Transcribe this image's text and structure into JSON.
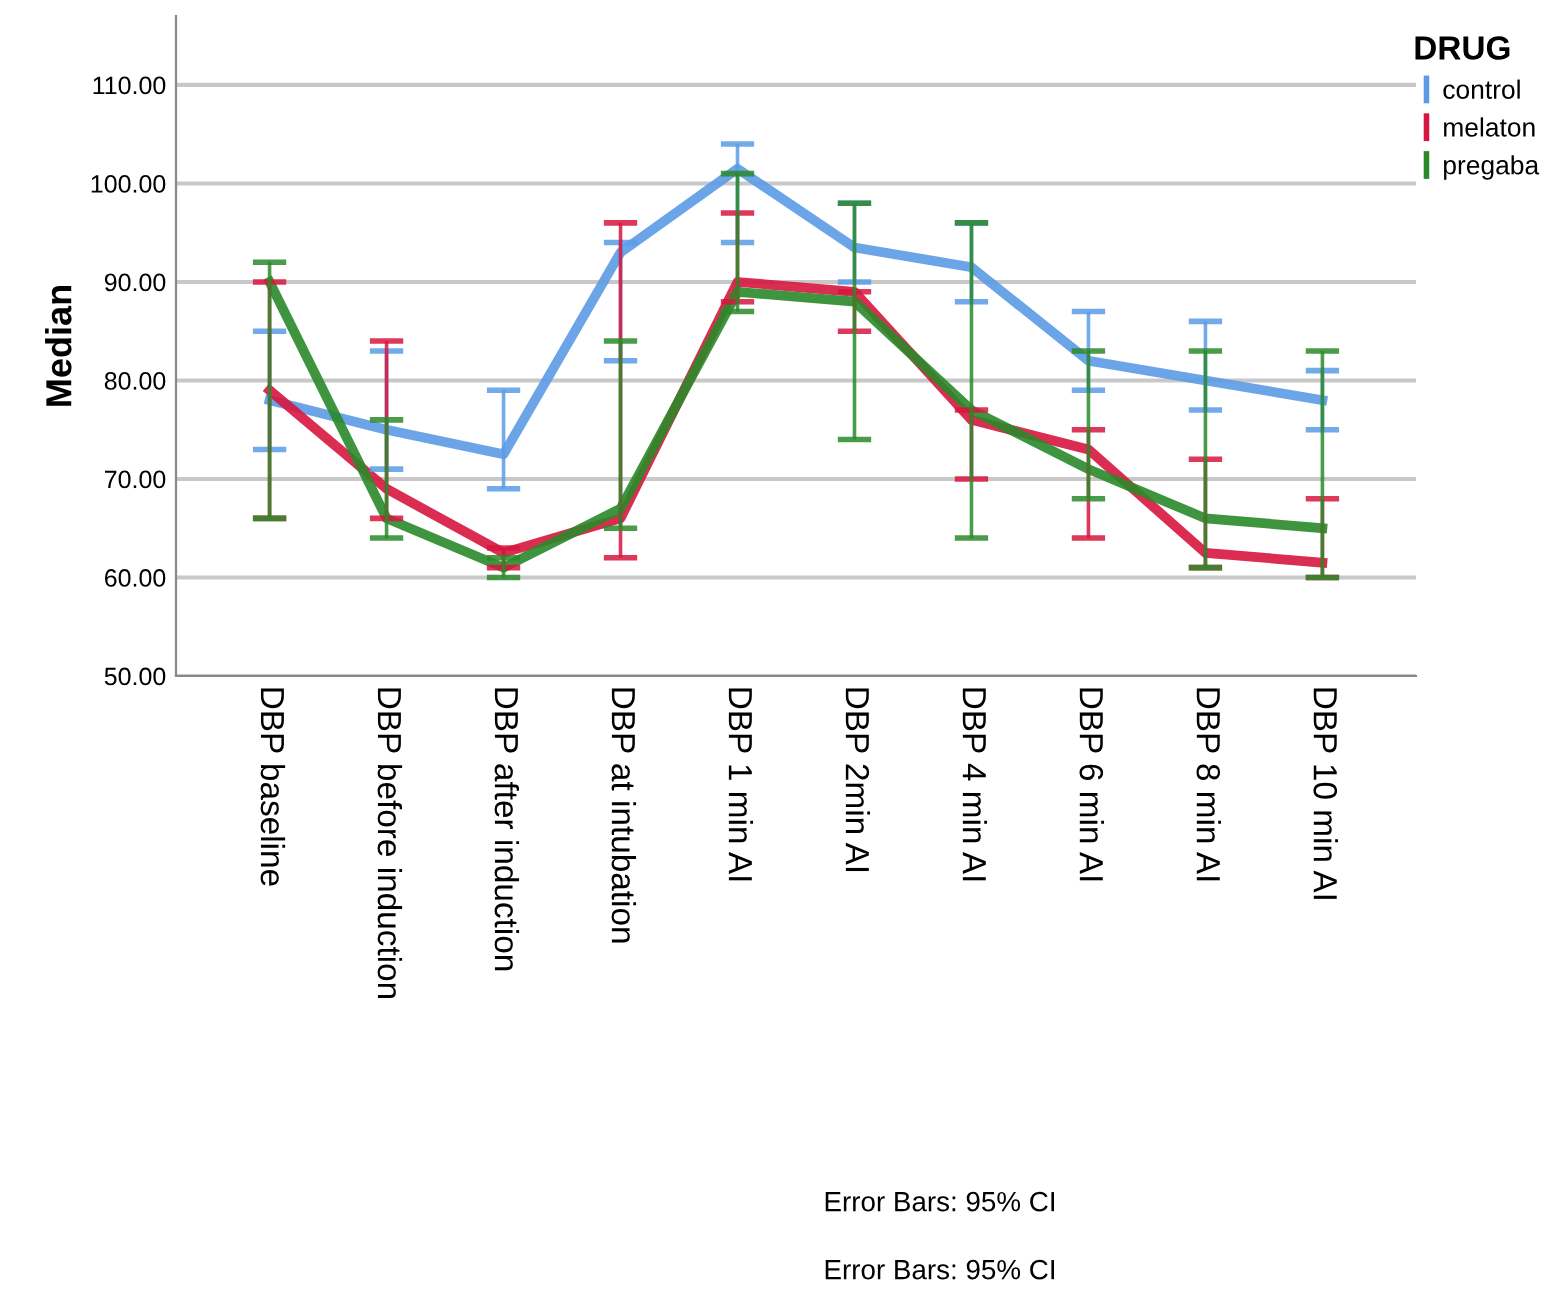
{
  "chart_data": {
    "type": "line",
    "ylabel": "Median",
    "legend_title": "DRUG",
    "legend": "top right",
    "grid": "y",
    "marker": "none",
    "line_style": "solid",
    "categories": [
      "DBP baseline",
      "DBP before induction",
      "DBP after induction",
      "DBP at intubation",
      "DBP 1 min AI",
      "DBP 2min AI",
      "DBP 4 min AI",
      "DBP 6 min AI",
      "DBP 8 min AI",
      "DBP 10 min AI"
    ],
    "ylim": [
      50,
      117
    ],
    "yticks": [
      {
        "value": 50,
        "label": "50.00"
      },
      {
        "value": 60,
        "label": "60.00"
      },
      {
        "value": 70,
        "label": "70.00"
      },
      {
        "value": 80,
        "label": "80.00"
      },
      {
        "value": 90,
        "label": "90.00"
      },
      {
        "value": 100,
        "label": "100.00"
      },
      {
        "value": 110,
        "label": "110.00"
      }
    ],
    "series": [
      {
        "name": "control",
        "color": "#5b9be6",
        "values": [
          78,
          75,
          72.5,
          93,
          101.5,
          93.5,
          91.5,
          82,
          80,
          78
        ],
        "errors": [
          [
            73,
            85
          ],
          [
            71,
            83
          ],
          [
            69,
            79
          ],
          [
            82,
            94
          ],
          [
            94,
            104
          ],
          [
            90,
            98
          ],
          [
            88,
            96
          ],
          [
            79,
            87
          ],
          [
            77,
            86
          ],
          [
            75,
            81
          ]
        ]
      },
      {
        "name": "melaton",
        "color": "#d6163e",
        "values": [
          79,
          69,
          62.5,
          66,
          90,
          89,
          76,
          73,
          62.5,
          61.5
        ],
        "errors": [
          [
            66,
            90
          ],
          [
            66,
            84
          ],
          [
            61,
            63
          ],
          [
            62,
            96
          ],
          [
            88,
            97
          ],
          [
            85,
            89
          ],
          [
            70,
            77
          ],
          [
            64,
            75
          ],
          [
            61,
            72
          ],
          [
            60,
            68
          ]
        ]
      },
      {
        "name": "pregaba",
        "color": "#2a8a2a",
        "values": [
          90,
          66,
          61,
          67,
          89,
          88,
          77,
          71,
          66,
          65
        ],
        "errors": [
          [
            66,
            92
          ],
          [
            64,
            76
          ],
          [
            60,
            62
          ],
          [
            65,
            84
          ],
          [
            87,
            101
          ],
          [
            74,
            98
          ],
          [
            64,
            96
          ],
          [
            68,
            83
          ],
          [
            61,
            83
          ],
          [
            60,
            83
          ]
        ]
      }
    ],
    "annotations": [
      "Error Bars: 95% CI",
      "Error Bars: 95% CI"
    ]
  }
}
